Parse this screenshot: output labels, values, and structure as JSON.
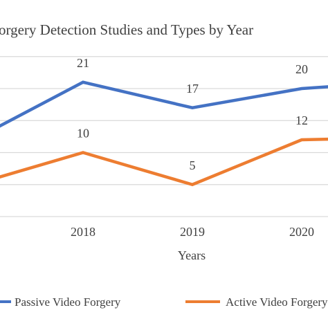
{
  "chart_data": {
    "type": "line",
    "title": "orgery Detection Studies and Types by Year",
    "xlabel": "Years",
    "ylabel": "",
    "categories": [
      "2018",
      "2019",
      "2020"
    ],
    "x": [
      2017,
      2018,
      2019,
      2020,
      2020.5
    ],
    "series": [
      {
        "name": "Passive Video Forgery",
        "color": "#4472C4",
        "values": [
          12,
          21,
          17,
          20,
          20.6
        ],
        "labels": [
          "",
          "21",
          "17",
          "20",
          ""
        ]
      },
      {
        "name": "Active Video Forgery",
        "color": "#ED7D31",
        "values": [
          5,
          10,
          5,
          12,
          12.2
        ],
        "labels": [
          "",
          "10",
          "5",
          "12",
          ""
        ]
      }
    ],
    "ylim": [
      0,
      25
    ],
    "grid": true,
    "legend_position": "bottom"
  }
}
